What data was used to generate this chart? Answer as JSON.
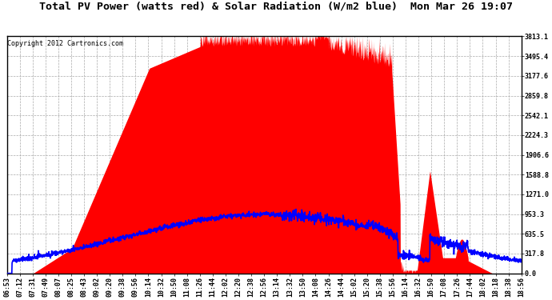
{
  "title": "Total PV Power (watts red) & Solar Radiation (W/m2 blue)  Mon Mar 26 19:07",
  "copyright_text": "Copyright 2012 Cartronics.com",
  "yticks": [
    0.0,
    317.8,
    635.5,
    953.3,
    1271.0,
    1588.8,
    1906.6,
    2224.3,
    2542.1,
    2859.8,
    3177.6,
    3495.4,
    3813.1
  ],
  "xtick_labels": [
    "06:53",
    "07:12",
    "07:31",
    "07:49",
    "08:07",
    "08:25",
    "08:43",
    "09:02",
    "09:20",
    "09:38",
    "09:56",
    "10:14",
    "10:32",
    "10:50",
    "11:08",
    "11:26",
    "11:44",
    "12:02",
    "12:20",
    "12:38",
    "12:56",
    "13:14",
    "13:32",
    "13:50",
    "14:08",
    "14:26",
    "14:44",
    "15:02",
    "15:20",
    "15:38",
    "15:56",
    "16:14",
    "16:32",
    "16:50",
    "17:08",
    "17:26",
    "17:44",
    "18:02",
    "18:18",
    "18:38",
    "18:56"
  ],
  "ymax": 3813.1,
  "ymin": 0.0,
  "background_color": "#ffffff",
  "plot_bg_color": "#ffffff",
  "grid_color": "#aaaaaa",
  "title_fontsize": 9.5,
  "copyright_fontsize": 6,
  "tick_fontsize": 6,
  "pv_color": "#ff0000",
  "solar_color": "#0000ff",
  "solar_peak": 950.0,
  "pv_peak": 3600.0
}
